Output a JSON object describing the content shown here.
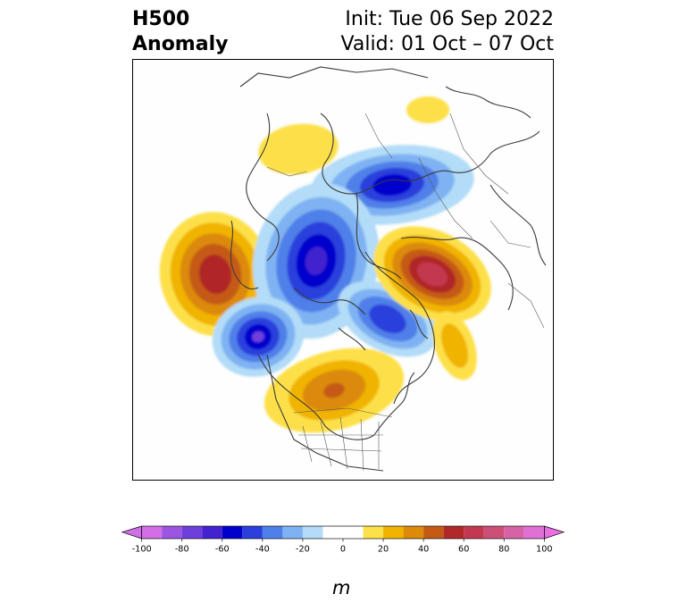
{
  "title": {
    "left_line1": "H500",
    "left_line2": "Anomaly",
    "right_line1": "Init: Tue 06 Sep 2022",
    "right_line2": "Valid: 01 Oct – 07 Oct"
  },
  "colorbar": {
    "unit": "m",
    "tick_labels": [
      "-100",
      "-80",
      "-60",
      "-40",
      "-20",
      "0",
      "20",
      "40",
      "60",
      "80",
      "100"
    ],
    "tick_values": [
      -100,
      -80,
      -60,
      -40,
      -20,
      0,
      20,
      40,
      60,
      80,
      100
    ],
    "levels": [
      -100,
      -90,
      -80,
      -70,
      -60,
      -50,
      -40,
      -30,
      -20,
      -10,
      10,
      20,
      30,
      40,
      50,
      60,
      70,
      80,
      90,
      100
    ],
    "colors": [
      "#d26ee6",
      "#9b55e0",
      "#6f3fdc",
      "#4322cf",
      "#0000cc",
      "#2a3fdc",
      "#4f7fe8",
      "#7eb2f2",
      "#b3dcf8",
      "#ffffff",
      "#fde04a",
      "#f0b400",
      "#dc8a0a",
      "#c45a14",
      "#b02828",
      "#c23850",
      "#cc4f78",
      "#d663a6",
      "#e070d6"
    ],
    "extend_low_color": "#d070e8",
    "extend_high_color": "#ea6ee0"
  }
}
